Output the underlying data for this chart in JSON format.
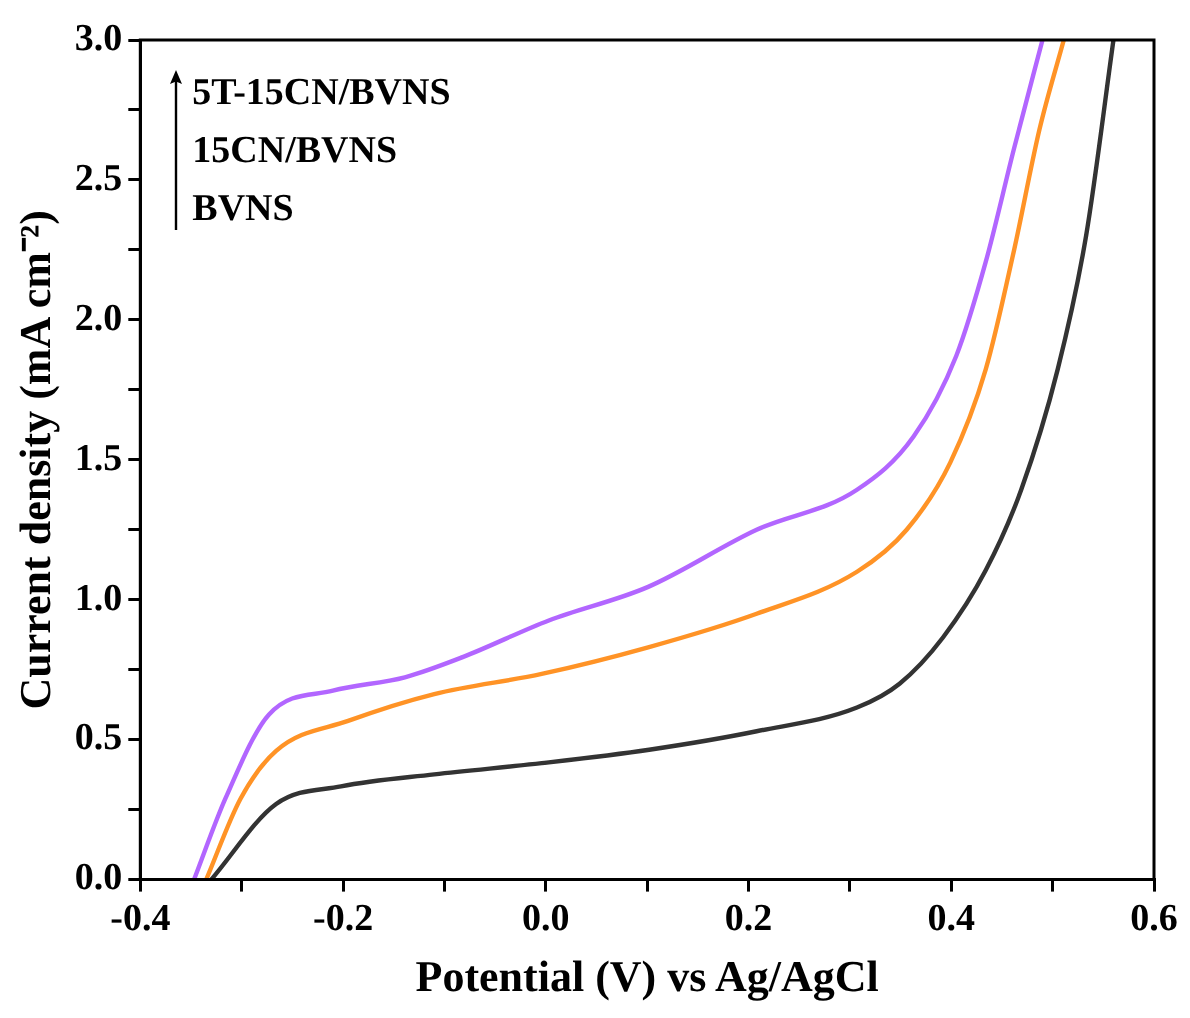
{
  "chart_data": {
    "type": "line",
    "xlabel": "Potential (V) vs Ag/AgCl",
    "ylabel": "Current density (mA cm⁻²)",
    "annotations": [
      "5T-15CN/BVNS",
      "15CN/BVNS",
      "BVNS"
    ],
    "xlim": [
      -0.4,
      0.6
    ],
    "ylim": [
      0,
      3.0
    ],
    "xticks": [
      -0.4,
      {
        "value": -0.3,
        "label": null
      },
      -0.2,
      {
        "value": -0.1,
        "label": null
      },
      {
        "value": 0,
        "label": "0.0"
      },
      {
        "value": 0.1,
        "label": null
      },
      0.2,
      {
        "value": 0.3,
        "label": null
      },
      0.4,
      {
        "value": 0.5,
        "label": null
      },
      0.6
    ],
    "yticks": [
      {
        "value": 0,
        "label": "0.0"
      },
      {
        "value": 0.25,
        "label": null
      },
      0.5,
      {
        "value": 0.75,
        "label": null
      },
      {
        "value": 1,
        "label": "1.0"
      },
      {
        "value": 1.25,
        "label": null
      },
      1.5,
      {
        "value": 1.75,
        "label": null
      },
      {
        "value": 2,
        "label": "2.0"
      },
      {
        "value": 2.25,
        "label": null
      },
      2.5,
      {
        "value": 2.75,
        "label": null
      },
      {
        "value": 3,
        "label": "3.0"
      }
    ],
    "grid": false,
    "legend": false,
    "marker": "none",
    "line_style": "solid",
    "series": [
      {
        "color": "#333333",
        "x": [
          -0.33,
          -0.266,
          -0.202,
          -0.11,
          -0.004,
          0.102,
          0.208,
          0.307,
          0.349,
          0.392,
          0.434,
          0.469,
          0.505,
          0.533,
          0.56
        ],
        "values": [
          0,
          0.27,
          0.333,
          0.376,
          0.416,
          0.464,
          0.53,
          0.615,
          0.7,
          0.866,
          1.105,
          1.393,
          1.823,
          2.3,
          3.0
        ]
      },
      {
        "color": "#ff9326",
        "x": [
          -0.335,
          -0.301,
          -0.266,
          -0.195,
          -0.11,
          -0.004,
          0.101,
          0.208,
          0.307,
          0.356,
          0.399,
          0.434,
          0.462,
          0.487,
          0.511
        ],
        "values": [
          0,
          0.29,
          0.46,
          0.567,
          0.663,
          0.735,
          0.83,
          0.95,
          1.1,
          1.25,
          1.49,
          1.823,
          2.25,
          2.68,
          3.0
        ]
      },
      {
        "color": "#b266ff",
        "x": [
          -0.347,
          -0.316,
          -0.273,
          -0.21,
          -0.139,
          -0.082,
          0.003,
          0.101,
          0.208,
          0.307,
          0.363,
          0.405,
          0.434,
          0.462,
          0.49
        ],
        "values": [
          0,
          0.29,
          0.59,
          0.675,
          0.723,
          0.795,
          0.926,
          1.046,
          1.25,
          1.393,
          1.584,
          1.872,
          2.207,
          2.613,
          3.0
        ]
      }
    ]
  }
}
